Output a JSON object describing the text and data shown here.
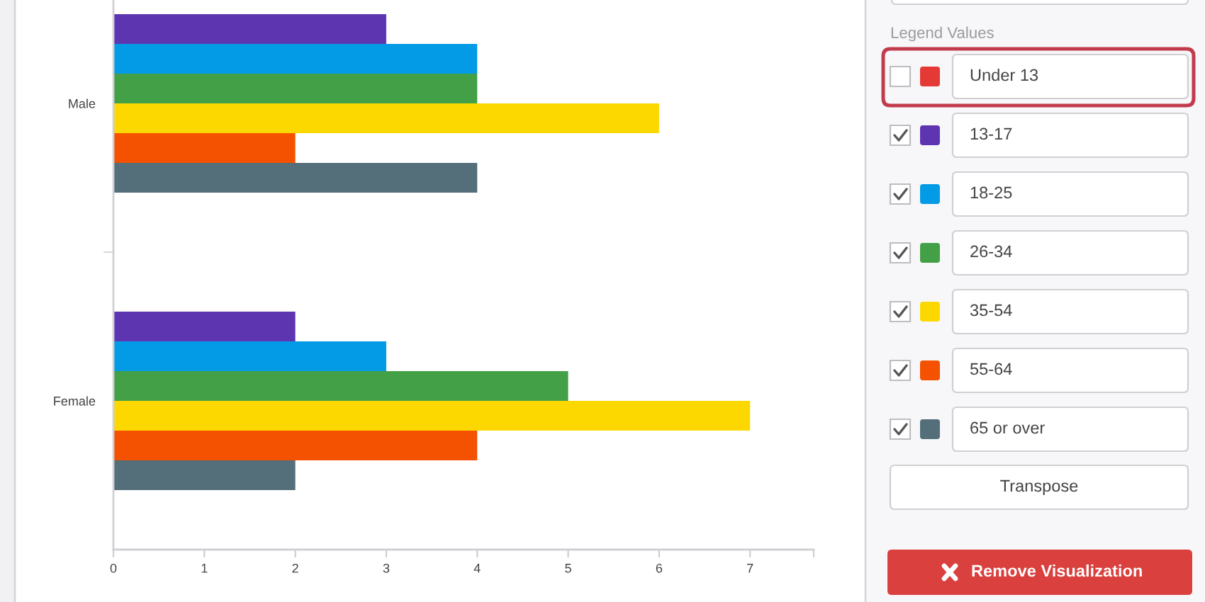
{
  "chart_data": {
    "type": "bar",
    "orientation": "horizontal",
    "categories": [
      "Male",
      "Female"
    ],
    "series": [
      {
        "name": "Under 13",
        "color": "#e53935",
        "values": [
          null,
          null
        ]
      },
      {
        "name": "13-17",
        "color": "#5e35b1",
        "values": [
          3,
          2
        ]
      },
      {
        "name": "18-25",
        "color": "#039be5",
        "values": [
          4,
          3
        ]
      },
      {
        "name": "26-34",
        "color": "#43a047",
        "values": [
          4,
          5
        ]
      },
      {
        "name": "35-54",
        "color": "#fdd800",
        "values": [
          6,
          7
        ]
      },
      {
        "name": "55-64",
        "color": "#f45100",
        "values": [
          2,
          4
        ]
      },
      {
        "name": "65 or over",
        "color": "#546e7a",
        "values": [
          4,
          2
        ]
      }
    ],
    "xlim": [
      0,
      7.7
    ],
    "xticks": [
      0,
      1,
      2,
      3,
      4,
      5,
      6,
      7,
      {
        "value": 7.7,
        "label": null
      }
    ],
    "legend": "right",
    "legend_title": "Legend Values",
    "annotations": [
      "Transpose",
      "Remove Visualization"
    ]
  }
}
